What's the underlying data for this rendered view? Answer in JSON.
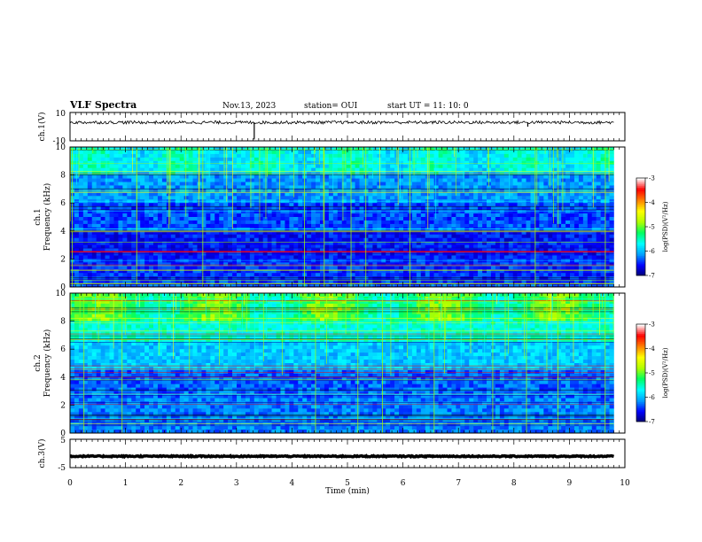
{
  "header": {
    "title": "VLF Spectra",
    "date": "Nov.13, 2023",
    "station": "station= OUI",
    "start_ut": "start UT =  11: 10: 0"
  },
  "chart_data": [
    {
      "type": "line",
      "name": "ch1-waveform",
      "ylabel": "ch.1(V)",
      "ylim": [
        -10,
        10
      ],
      "ytick_labels": [
        "10",
        "-10"
      ],
      "xlim": [
        0,
        10
      ],
      "data_extent_min": 9.8,
      "baseline": 3,
      "spikes": [
        {
          "x": 3.32,
          "y": -9
        },
        {
          "x": 8.25,
          "y": 0
        }
      ]
    },
    {
      "type": "heatmap",
      "name": "ch1-spectrogram",
      "ylabel": "ch.1\nFrequency (kHz)",
      "ylabel_line1": "ch.1",
      "ylabel_line2": "Frequency (kHz)",
      "ylim": [
        0,
        10
      ],
      "ytick_labels": [
        "0",
        "2",
        "4",
        "6",
        "8",
        "10"
      ],
      "xlim": [
        0,
        10
      ],
      "colorbar": {
        "label": "log(PSD)(V²/Hz)",
        "range": [
          -7,
          -3
        ],
        "tick_labels": [
          "-3",
          "-4",
          "-5",
          "-6",
          "-7"
        ],
        "colors": [
          "#000070",
          "#0000ff",
          "#00a0ff",
          "#00ffff",
          "#00ff60",
          "#b0ff00",
          "#ffff00",
          "#ff8000",
          "#ff0000",
          "#ffffff"
        ]
      }
    },
    {
      "type": "heatmap",
      "name": "ch2-spectrogram",
      "ylabel": "ch.2\nFrequency (kHz)",
      "ylabel_line1": "ch.2",
      "ylabel_line2": "Frequency (kHz)",
      "ylim": [
        0,
        10
      ],
      "ytick_labels": [
        "0",
        "2",
        "4",
        "6",
        "8",
        "10"
      ],
      "xlim": [
        0,
        10
      ],
      "colorbar": {
        "label": "log(PSD)(V²/Hz)",
        "range": [
          -7,
          -3
        ],
        "tick_labels": [
          "-3",
          "-4",
          "-5",
          "-6",
          "-7"
        ],
        "colors": [
          "#000070",
          "#0000ff",
          "#00a0ff",
          "#00ffff",
          "#00ff60",
          "#b0ff00",
          "#ffff00",
          "#ff8000",
          "#ff0000",
          "#ffffff"
        ]
      }
    },
    {
      "type": "line",
      "name": "ch3-waveform",
      "ylabel": "ch.3(V)",
      "ylim": [
        -5,
        5
      ],
      "ytick_labels": [
        "5",
        "-5"
      ],
      "xlim": [
        0,
        10
      ],
      "data_extent_min": 9.8,
      "baseline": -1
    }
  ],
  "xaxis": {
    "label": "Time (min)",
    "tick_labels": [
      "0",
      "1",
      "2",
      "3",
      "4",
      "5",
      "6",
      "7",
      "8",
      "9",
      "10"
    ]
  }
}
